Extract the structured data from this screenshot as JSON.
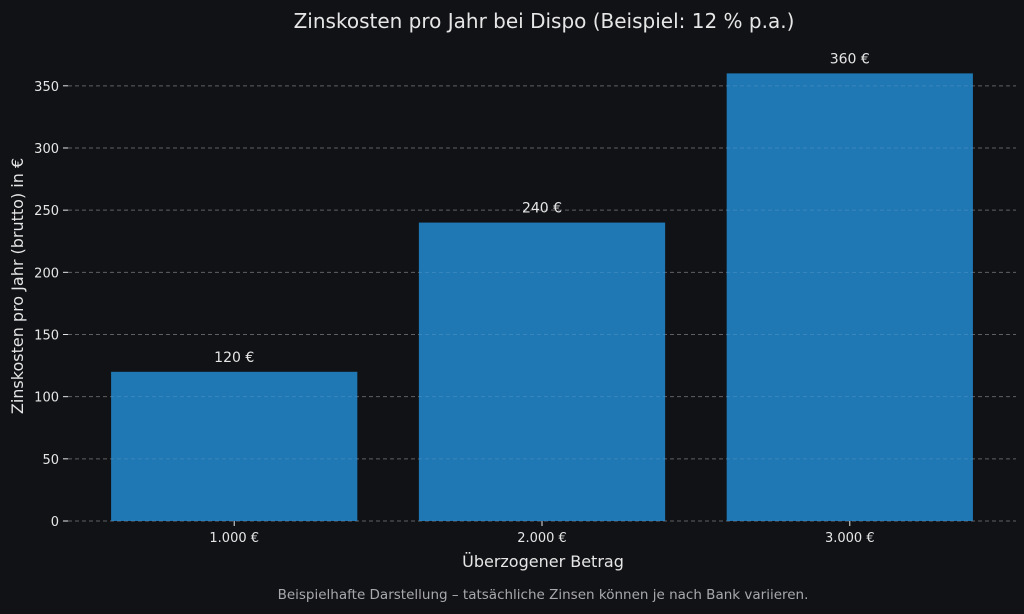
{
  "chart_data": {
    "type": "bar",
    "title": "Zinskosten pro Jahr bei Dispo (Beispiel: 12 % p.a.)",
    "xlabel": "Überzogener Betrag",
    "ylabel": "Zinskosten pro Jahr (brutto) in €",
    "categories": [
      "1.000 €",
      "2.000 €",
      "3.000 €"
    ],
    "values": [
      120,
      240,
      360
    ],
    "data_labels": [
      "120 €",
      "240 €",
      "360 €"
    ],
    "yticks": [
      0,
      50,
      100,
      150,
      200,
      250,
      300,
      350
    ],
    "ylim": [
      0,
      378
    ],
    "grid": "y-dashed",
    "caption": "Beispielhafte Darstellung – tatsächliche Zinsen können je nach Bank variieren.",
    "colors": {
      "background": "#111216",
      "bar": "#1f77b4",
      "text": "#e6e6e6",
      "grid": "#4a4a4f"
    }
  }
}
